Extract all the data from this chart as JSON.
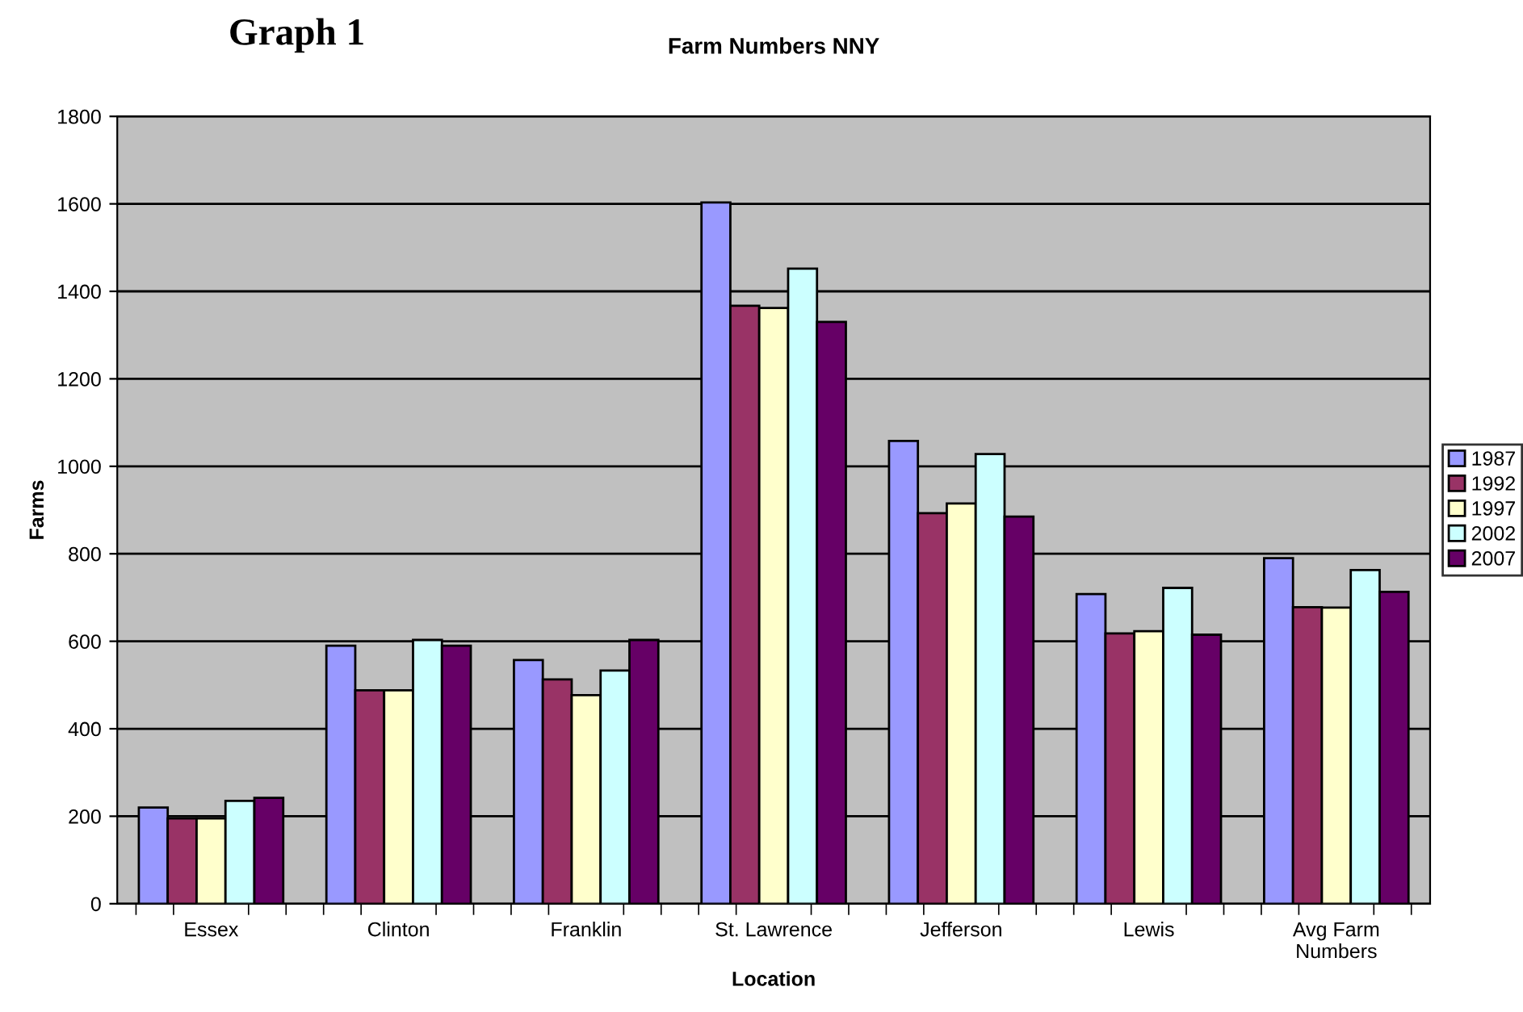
{
  "chart_data": {
    "type": "bar",
    "title": "Farm Numbers NNY",
    "xlabel": "Location",
    "ylabel": "Farms",
    "annotations": [
      "Graph 1"
    ],
    "categories": [
      "Essex",
      "Clinton",
      "Franklin",
      "St. Lawrence",
      "Jefferson",
      "Lewis",
      "Avg Farm\nNumbers"
    ],
    "series": [
      {
        "name": "1987",
        "color": "#9999ff",
        "values": [
          220,
          590,
          557,
          1603,
          1058,
          708,
          790
        ]
      },
      {
        "name": "1992",
        "color": "#993366",
        "values": [
          195,
          488,
          513,
          1367,
          893,
          618,
          678
        ]
      },
      {
        "name": "1997",
        "color": "#ffffcc",
        "values": [
          195,
          488,
          477,
          1362,
          915,
          623,
          677
        ]
      },
      {
        "name": "2002",
        "color": "#ccffff",
        "values": [
          235,
          603,
          533,
          1452,
          1028,
          722,
          763
        ]
      },
      {
        "name": "2007",
        "color": "#660066",
        "values": [
          242,
          590,
          603,
          1330,
          885,
          615,
          713
        ]
      }
    ],
    "ylim": [
      0,
      1800
    ],
    "yticks": [
      0,
      200,
      400,
      600,
      800,
      1000,
      1200,
      1400,
      1600,
      1800
    ],
    "grid": "y",
    "legend": "right"
  }
}
